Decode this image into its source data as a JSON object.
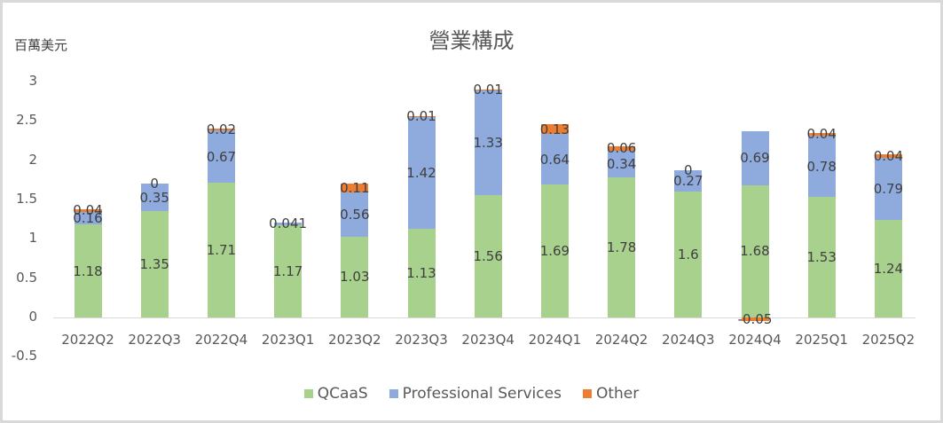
{
  "chart_data": {
    "type": "bar",
    "stacked": true,
    "title": "營業構成",
    "ylabel": "百萬美元",
    "xlabel": "",
    "ylim": [
      -0.5,
      3
    ],
    "yticks": [
      "3",
      "2.5",
      "2",
      "1.5",
      "1",
      "0.5",
      "0",
      "-0.5"
    ],
    "grid": false,
    "legend_position": "bottom",
    "categories": [
      "2022Q2",
      "2022Q3",
      "2022Q4",
      "2023Q1",
      "2023Q2",
      "2023Q3",
      "2023Q4",
      "2024Q1",
      "2024Q2",
      "2024Q3",
      "2024Q4",
      "2025Q1",
      "2025Q2"
    ],
    "series": [
      {
        "name": "QCaaS",
        "color": "#a9d18e",
        "values": [
          1.18,
          1.35,
          1.71,
          1.17,
          1.03,
          1.13,
          1.56,
          1.69,
          1.78,
          1.6,
          1.68,
          1.53,
          1.24
        ]
      },
      {
        "name": "Professional Services",
        "color": "#8faadc",
        "values": [
          0.16,
          0.35,
          0.67,
          0.041,
          0.56,
          1.42,
          1.33,
          0.64,
          0.34,
          0.27,
          0.69,
          0.78,
          0.79
        ]
      },
      {
        "name": "Other",
        "color": "#ed7d31",
        "values": [
          0.04,
          0,
          0.02,
          null,
          0.11,
          0.01,
          0.01,
          0.13,
          0.06,
          0,
          -0.05,
          0.04,
          0.04
        ]
      }
    ],
    "data_labels": {
      "QCaaS": [
        "1.18",
        "1.35",
        "1.71",
        "1.17",
        "1.03",
        "1.13",
        "1.56",
        "1.69",
        "1.78",
        "1.6",
        "1.68",
        "1.53",
        "1.24"
      ],
      "Professional Services": [
        "0.16",
        "0.35",
        "0.67",
        "0.041",
        "0.56",
        "1.42",
        "1.33",
        "0.64",
        "0.34",
        "0.27",
        "0.69",
        "0.78",
        "0.79"
      ],
      "Other": [
        "0.04",
        "0",
        "0.02",
        "",
        "0.11",
        "0.01",
        "0.01",
        "0.13",
        "0.06",
        "0",
        "-0.05",
        "0.04",
        "0.04"
      ]
    }
  }
}
